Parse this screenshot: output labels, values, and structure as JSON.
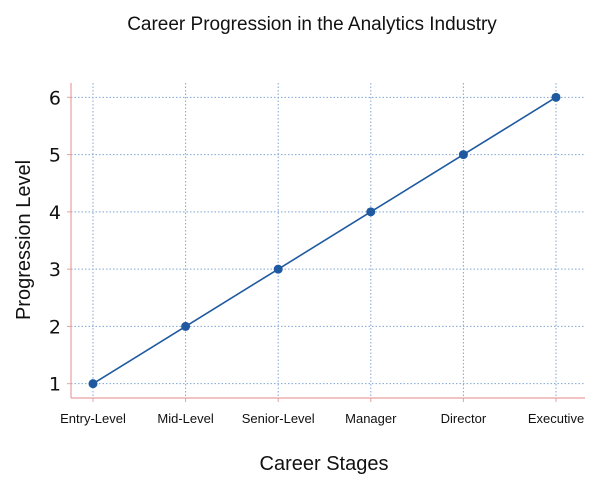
{
  "chart_data": {
    "type": "line",
    "title": "Career Progression in the Analytics Industry",
    "xlabel": "Career Stages",
    "ylabel": "Progression Level",
    "categories": [
      "Entry-Level",
      "Mid-Level",
      "Senior-Level",
      "Manager",
      "Director",
      "Executive"
    ],
    "series": [
      {
        "values": [
          1,
          2,
          3,
          4,
          5,
          6
        ],
        "color": "#1f5aa0"
      }
    ],
    "yticks": [
      "1",
      "2",
      "3",
      "4",
      "5",
      "6"
    ],
    "ylim": [
      0.75,
      6.25
    ],
    "grid": true,
    "grid_style": "dotted",
    "grid_color": "#7fa6d6",
    "axis_line_color": "#e8a0a0",
    "legend": "none"
  }
}
